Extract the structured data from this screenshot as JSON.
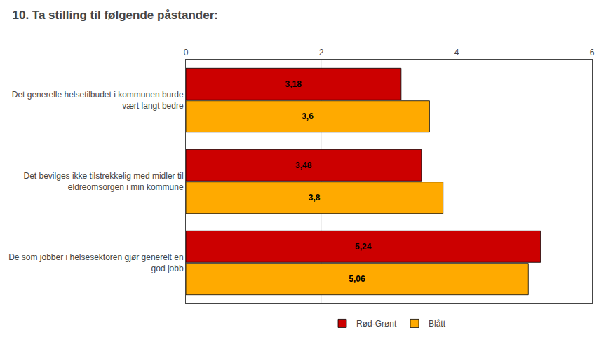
{
  "chart_data": {
    "type": "bar",
    "orientation": "horizontal",
    "title": "10. Ta stilling til følgende påstander:",
    "categories": [
      "Det generelle helsetilbudet i kommunen burde\nvært langt bedre",
      "Det bevilges ikke tilstrekkelig med midler til\neldreomsorgen i min kommune",
      "De som jobber i helsesektoren gjør generelt en\ngod jobb"
    ],
    "series": [
      {
        "name": "Rød-Grønt",
        "color": "#cc0000",
        "values": [
          3.18,
          3.48,
          5.24
        ],
        "value_labels": [
          "3,18",
          "3,48",
          "5,24"
        ]
      },
      {
        "name": "Blått",
        "color": "#ffaa00",
        "values": [
          3.6,
          3.8,
          5.06
        ],
        "value_labels": [
          "3,6",
          "3,8",
          "5,06"
        ]
      }
    ],
    "xlim": [
      0,
      6
    ],
    "xticks": [
      0,
      2,
      4,
      6
    ],
    "grid": true,
    "legend": "bottom",
    "data_labels": true
  }
}
